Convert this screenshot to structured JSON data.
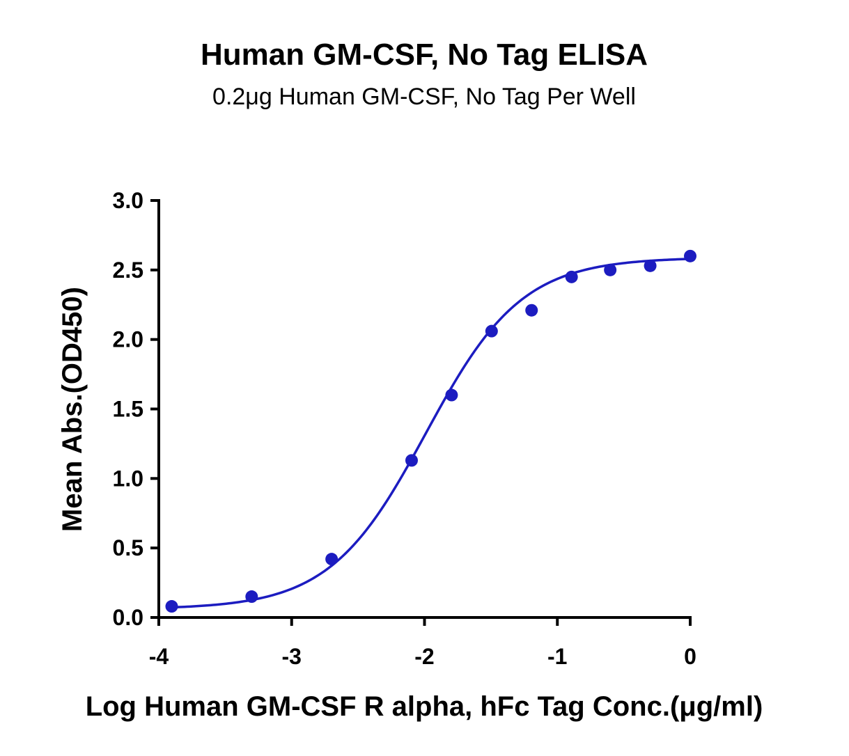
{
  "chart_data": {
    "type": "scatter",
    "title": "Human GM-CSF, No Tag ELISA",
    "subtitle": "0.2μg Human GM-CSF, No Tag Per Well",
    "xlabel": "Log Human GM-CSF R alpha, hFc Tag Conc.(μg/ml)",
    "ylabel": "Mean Abs.(OD450)",
    "xlim": [
      -4,
      0
    ],
    "ylim": [
      0,
      3.0
    ],
    "x_ticks": [
      -4,
      -3,
      -2,
      -1,
      0
    ],
    "x_tick_labels": [
      "-4",
      "-3",
      "-2",
      "-1",
      "0"
    ],
    "y_ticks": [
      0,
      0.5,
      1.0,
      1.5,
      2.0,
      2.5,
      3.0
    ],
    "y_tick_labels": [
      "0.0",
      "0.5",
      "1.0",
      "1.5",
      "2.0",
      "2.5",
      "3.0"
    ],
    "grid": false,
    "colors": {
      "series": "#1c1cc0",
      "axis": "#000000"
    },
    "series": [
      {
        "x": [
          -3.903,
          -3.301,
          -2.699,
          -2.097,
          -1.796,
          -1.495,
          -1.194,
          -0.893,
          -0.602,
          -0.301,
          0.0
        ],
        "y": [
          0.08,
          0.15,
          0.42,
          1.13,
          1.6,
          2.06,
          2.21,
          2.45,
          2.5,
          2.53,
          2.6
        ]
      }
    ],
    "fit": {
      "model": "4PL",
      "bottom": 0.06,
      "top": 2.59,
      "logEC50": -1.99,
      "hill": 1.2
    }
  }
}
